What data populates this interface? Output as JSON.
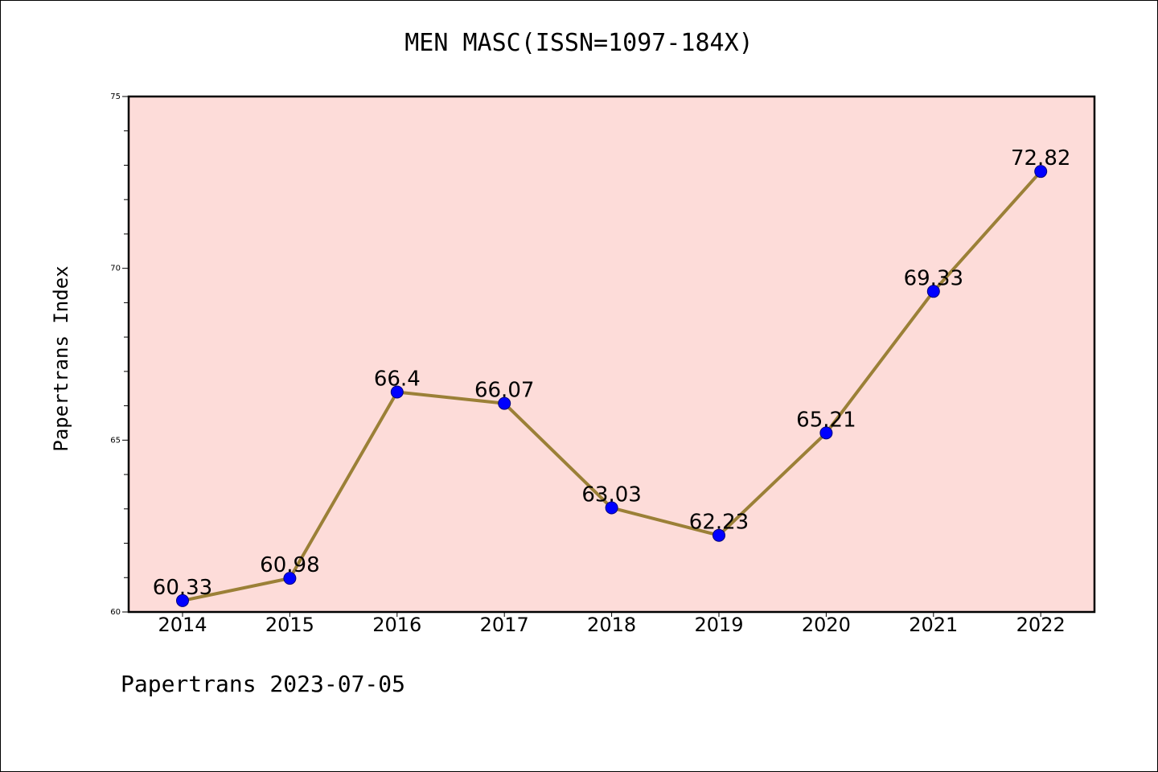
{
  "chart_data": {
    "type": "line",
    "title": "MEN MASC(ISSN=1097-184X)",
    "ylabel": "Papertrans Index",
    "xlabel": "",
    "footer": "Papertrans 2023-07-05",
    "categories": [
      "2014",
      "2015",
      "2016",
      "2017",
      "2018",
      "2019",
      "2020",
      "2021",
      "2022"
    ],
    "values": [
      60.33,
      60.98,
      66.4,
      66.07,
      63.03,
      62.23,
      65.21,
      69.33,
      72.82
    ],
    "data_labels": [
      "60.33",
      "60.98",
      "66.4",
      "66.07",
      "63.03",
      "62.23",
      "65.21",
      "69.33",
      "72.82"
    ],
    "ylim": [
      60,
      75
    ],
    "yticks_major": [
      60,
      65,
      70,
      75
    ],
    "yticks_minor_step": 1,
    "grid": false,
    "colors": {
      "plot_background": "#fddcd9",
      "line": "#9b8037",
      "marker": "#0000ff",
      "axis": "#000000"
    }
  }
}
